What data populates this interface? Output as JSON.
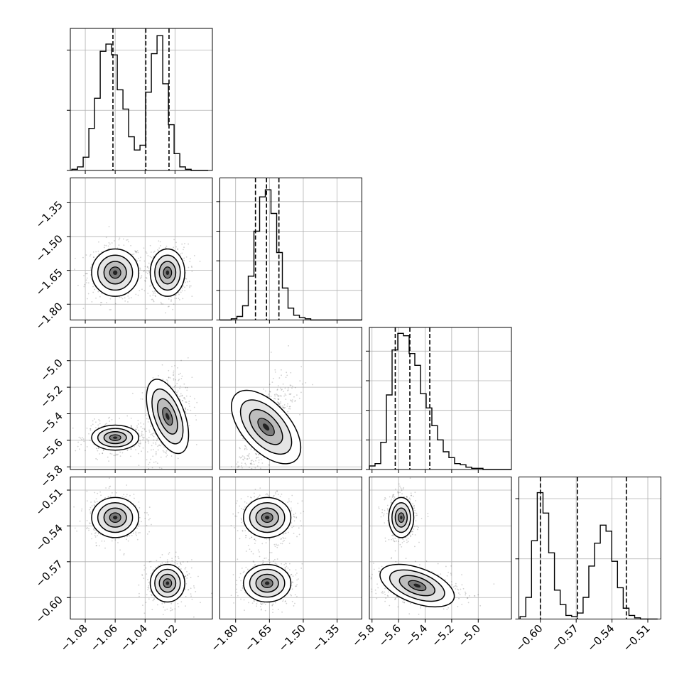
{
  "chart_data": {
    "type": "corner",
    "grid": true,
    "xlabel": "",
    "ylabel": "",
    "parameters": [
      {
        "range": [
          -1.09,
          -0.995
        ],
        "ticks": [
          -1.08,
          -1.06,
          -1.04,
          -1.02
        ],
        "tick_labels": [
          "−1.08",
          "−1.06",
          "−1.04",
          "−1.02"
        ],
        "quantiles": [
          -1.0615,
          -1.0395,
          -1.024
        ],
        "hist_edges": [
          -1.089,
          -1.0852,
          -1.0814,
          -1.0776,
          -1.0738,
          -1.07,
          -1.0662,
          -1.0624,
          -1.0586,
          -1.0548,
          -1.051,
          -1.0472,
          -1.0434,
          -1.0396,
          -1.0358,
          -1.032,
          -1.0282,
          -1.0244,
          -1.0206,
          -1.0168,
          -1.013,
          -1.0092,
          -1.0054,
          -1.0016,
          -0.9978
        ],
        "hist_counts": [
          1,
          3,
          11,
          35,
          60,
          99,
          105,
          96,
          67,
          51,
          28,
          17,
          21,
          65,
          97,
          112,
          72,
          38,
          14,
          3,
          1,
          0,
          0,
          0
        ],
        "hist_ticks": [
          0,
          50,
          100
        ],
        "hist_max": 118,
        "modes": [
          {
            "center": [
              -1.06,
              -1.66
            ],
            "spread": [
              0.0075,
              0.05
            ]
          },
          {
            "center": [
              -1.025,
              -1.66
            ],
            "spread": [
              0.0055,
              0.05
            ]
          }
        ]
      },
      {
        "range": [
          -1.87,
          -1.24
        ],
        "ticks": [
          -1.8,
          -1.65,
          -1.5,
          -1.35
        ],
        "tick_labels": [
          "−1.80",
          "−1.65",
          "−1.50",
          "−1.35"
        ],
        "quantiles": [
          -1.712,
          -1.663,
          -1.608
        ],
        "hist_edges": [
          -1.87,
          -1.8448,
          -1.8196,
          -1.7944,
          -1.7692,
          -1.744,
          -1.7188,
          -1.6936,
          -1.6684,
          -1.6432,
          -1.618,
          -1.5928,
          -1.5676,
          -1.5424,
          -1.5172,
          -1.492,
          -1.4668,
          -1.4416,
          -1.4164,
          -1.3912,
          -1.366,
          -1.3408,
          -1.3156,
          -1.2904,
          -1.2652,
          -1.24
        ],
        "hist_counts": [
          0,
          0,
          1,
          3,
          12,
          37,
          75,
          104,
          110,
          90,
          57,
          27,
          10,
          4,
          2,
          1,
          0,
          0,
          0,
          0,
          0,
          0,
          0,
          0,
          0
        ],
        "hist_ticks": [
          0,
          25,
          50,
          75,
          100
        ],
        "hist_max": 120
      },
      {
        "range": [
          -5.82,
          -4.75
        ],
        "ticks": [
          -5.8,
          -5.6,
          -5.4,
          -5.2,
          -5.0
        ],
        "tick_labels": [
          "−5.8",
          "−5.6",
          "−5.4",
          "−5.2",
          "−5.0"
        ],
        "quantiles": [
          -5.625,
          -5.515,
          -5.365
        ],
        "hist_edges": [
          -5.82,
          -5.7772,
          -5.7344,
          -5.6916,
          -5.6488,
          -5.606,
          -5.5632,
          -5.5204,
          -5.4776,
          -5.4348,
          -5.392,
          -5.3492,
          -5.3064,
          -5.2636,
          -5.2208,
          -5.178,
          -5.1352,
          -5.0924,
          -5.0496,
          -5.0068,
          -4.964,
          -4.9212,
          -4.8784,
          -4.8356,
          -4.7928,
          -4.75
        ],
        "hist_counts": [
          3,
          5,
          23,
          63,
          101,
          115,
          113,
          98,
          88,
          64,
          52,
          37,
          25,
          15,
          10,
          5,
          4,
          2,
          1,
          1,
          0,
          0,
          0,
          0,
          0
        ],
        "hist_ticks": [
          0,
          25,
          50,
          75,
          100
        ],
        "hist_max": 120
      },
      {
        "range": [
          -0.618,
          -0.499
        ],
        "ticks": [
          -0.6,
          -0.57,
          -0.54,
          -0.51
        ],
        "tick_labels": [
          "−0.60",
          "−0.57",
          "−0.54",
          "−0.51"
        ],
        "quantiles": [
          -0.6,
          -0.569,
          -0.528
        ],
        "hist_edges": [
          -0.617,
          -0.6122,
          -0.6074,
          -0.6026,
          -0.5978,
          -0.593,
          -0.5882,
          -0.5834,
          -0.5786,
          -0.5738,
          -0.569,
          -0.5642,
          -0.5594,
          -0.5546,
          -0.5498,
          -0.545,
          -0.5402,
          -0.5354,
          -0.5306,
          -0.5258,
          -0.521,
          -0.5162,
          -0.5114,
          -0.5066,
          -0.5018
        ],
        "hist_counts": [
          2,
          18,
          65,
          105,
          88,
          55,
          24,
          12,
          3,
          2,
          5,
          18,
          44,
          63,
          78,
          73,
          48,
          26,
          9,
          3,
          1,
          0,
          0,
          0
        ],
        "hist_ticks": [
          0,
          50,
          100
        ],
        "hist_max": 118,
        "modes": [
          {
            "center": [
              -1.06,
              -0.533
            ],
            "spread": [
              0.0075,
              0.008
            ]
          },
          {
            "center": [
              -1.025,
              -0.588
            ],
            "spread": [
              0.0055,
              0.0075
            ]
          }
        ]
      }
    ]
  }
}
